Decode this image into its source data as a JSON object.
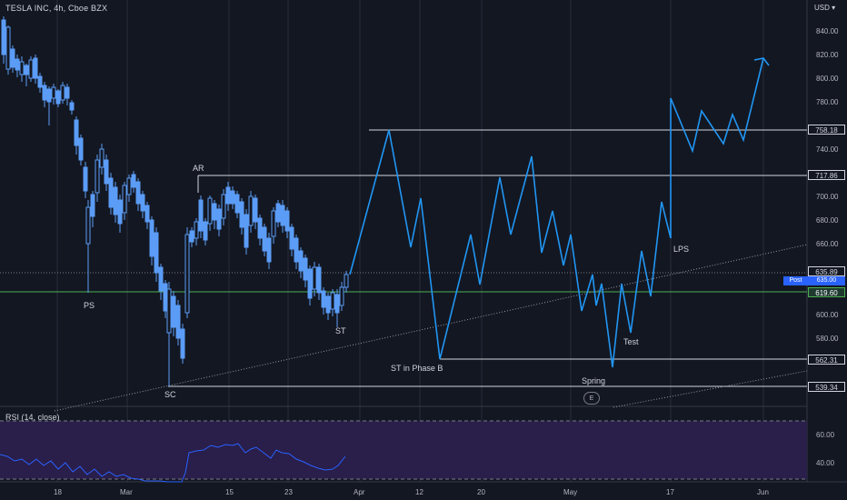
{
  "header": {
    "title": "TESLA INC, 4h, Cboe BZX",
    "currency": "USD",
    "currency_menu_icon": "chevron-down-icon"
  },
  "rsi": {
    "label": "RSI (14, close)",
    "ticks": [
      "60.00",
      "40.00"
    ]
  },
  "price_axis": {
    "ticks": [
      "840.00",
      "820.00",
      "800.00",
      "780.00",
      "760.00",
      "740.00",
      "720.00",
      "700.00",
      "680.00",
      "660.00",
      "640.00",
      "620.00",
      "600.00",
      "580.00",
      "560.00"
    ]
  },
  "price_tags": {
    "t758": "758.18",
    "t717": "717.86",
    "t635": "635.89",
    "t619": "619.60",
    "t562": "562.31",
    "t539": "539.34",
    "post_label": "Post",
    "post_value": "635.00"
  },
  "time_axis": [
    "18",
    "Mar",
    "15",
    "23",
    "Apr",
    "12",
    "20",
    "May",
    "17",
    "Jun"
  ],
  "annotations": {
    "ps": "PS",
    "sc": "SC",
    "ar": "AR",
    "st": "ST",
    "st_phase_b": "ST in Phase B",
    "spring": "Spring",
    "test": "Test",
    "lps": "LPS",
    "event": "E"
  },
  "colors": {
    "background": "#131722",
    "candle": "#5b9cf6",
    "projection": "#2196f3",
    "rsi_band": "#2a1e4a",
    "rsi_line": "#2962ff",
    "level_line": "#d1d4dc",
    "green_level": "#4caf50"
  }
}
